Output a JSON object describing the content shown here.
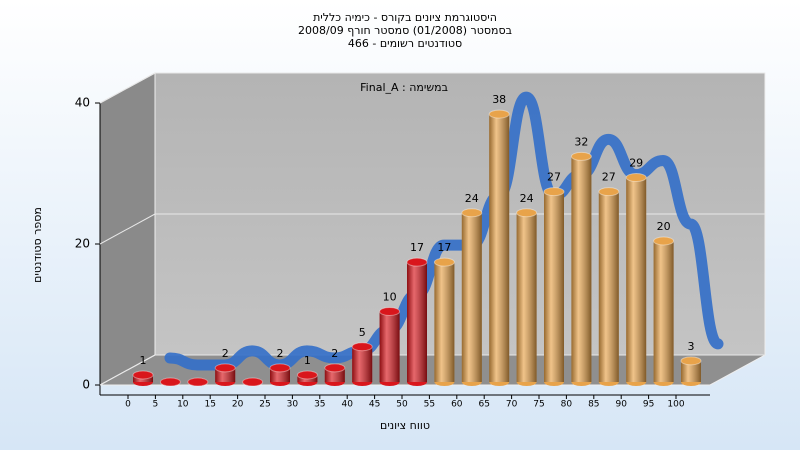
{
  "chart_data": {
    "type": "bar3d",
    "title": [
      "היסטוגרמת ציונים בקורס - כימיה כללית",
      "בסמסטר (01/2008) סמסטר חורף 2008/09",
      "סטודנטים רשומים - 466"
    ],
    "annotation": "במשימה : Final_A",
    "x_label": "טווח ציונים",
    "y_label": "מספר סטודנטים",
    "x": [
      0,
      5,
      10,
      15,
      20,
      25,
      30,
      35,
      40,
      45,
      50,
      55,
      60,
      65,
      70,
      75,
      80,
      85,
      90,
      95,
      100
    ],
    "values": [
      1,
      0,
      0,
      2,
      0,
      2,
      1,
      2,
      5,
      10,
      17,
      17,
      24,
      38,
      24,
      27,
      32,
      27,
      29,
      20,
      3
    ],
    "bar_colors": [
      "#d9161c",
      "#d9161c",
      "#d9161c",
      "#d9161c",
      "#d9161c",
      "#d9161c",
      "#d9161c",
      "#d9161c",
      "#d9161c",
      "#d9161c",
      "#d9161c",
      "#e8a34a",
      "#e8a34a",
      "#e8a34a",
      "#e8a34a",
      "#e8a34a",
      "#e8a34a",
      "#e8a34a",
      "#e8a34a",
      "#e8a34a",
      "#e8a34a"
    ],
    "line_color": "#3570c8",
    "ylim": [
      0,
      40
    ],
    "yticks": [
      0,
      20,
      40
    ],
    "grid": true
  }
}
